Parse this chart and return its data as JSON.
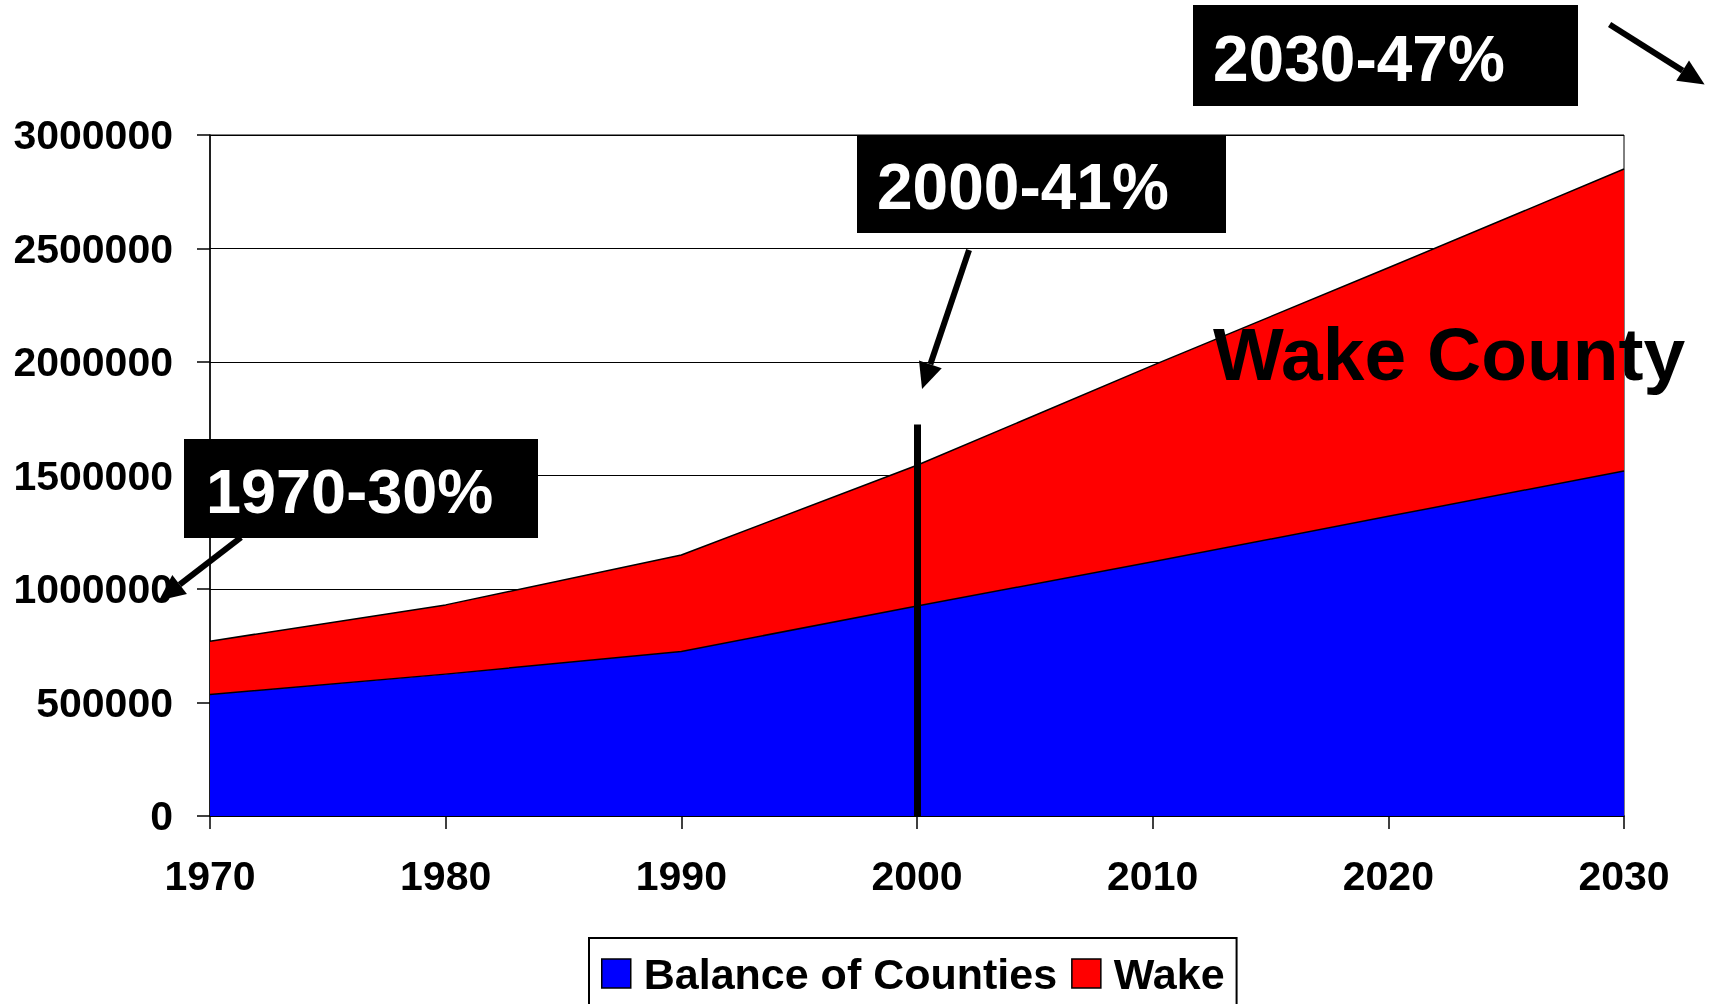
{
  "chart_data": {
    "type": "area",
    "x": [
      1970,
      1980,
      1990,
      2000,
      2010,
      2020,
      2030
    ],
    "series": [
      {
        "name": "Balance of Counties",
        "color": "#0000ff",
        "values": [
          535000,
          625000,
          725000,
          925000,
          1120000,
          1320000,
          1520000
        ]
      },
      {
        "name": "Wake",
        "color": "#ff0000",
        "values": [
          235000,
          305000,
          425000,
          620000,
          865000,
          1095000,
          1330000
        ]
      }
    ],
    "stacked": true,
    "xlim": [
      1970,
      2030
    ],
    "xticks": [
      1970,
      1980,
      1990,
      2000,
      2010,
      2020,
      2030
    ],
    "ylim": [
      0,
      3000000
    ],
    "yticks": [
      0,
      500000,
      1000000,
      1500000,
      2000000,
      2500000,
      3000000
    ],
    "grid": "y",
    "legend": "bottom",
    "ref_lines": [
      {
        "axis": "x",
        "value": 2000,
        "color": "#000000"
      }
    ],
    "annotations": [
      "1970-30%",
      "2000-41%",
      "2030-47%",
      "Wake County"
    ]
  }
}
